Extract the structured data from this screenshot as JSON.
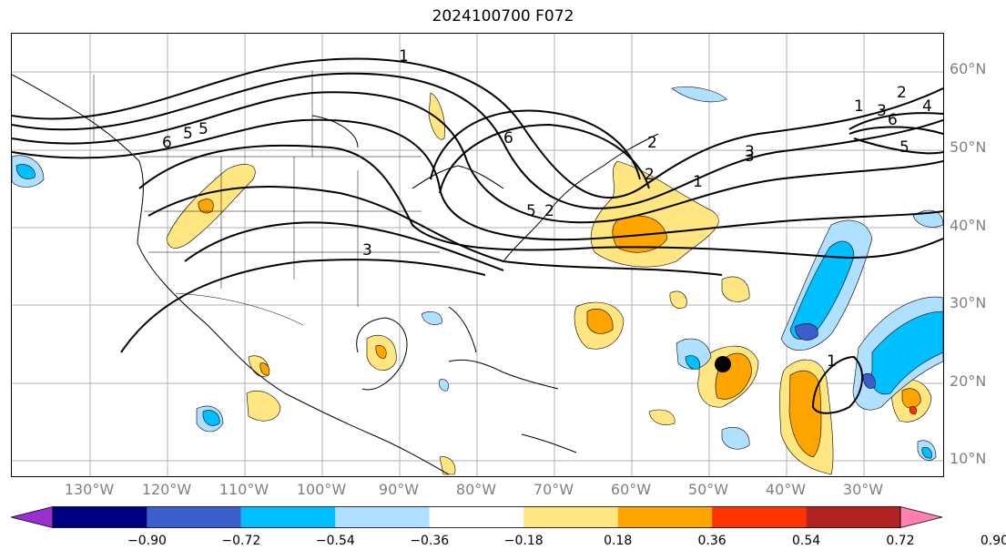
{
  "title": "2024100700 F072",
  "latitude_labels": [
    "60°N",
    "50°N",
    "40°N",
    "30°N",
    "20°N",
    "10°N"
  ],
  "longitude_labels": [
    "130°W",
    "120°W",
    "110°W",
    "100°W",
    "90°W",
    "80°W",
    "70°W",
    "60°W",
    "50°W",
    "40°W",
    "30°W"
  ],
  "colorbar": {
    "tick_labels": [
      "−0.90",
      "−0.72",
      "−0.54",
      "−0.36",
      "−0.18",
      "0.18",
      "0.36",
      "0.54",
      "0.72",
      "0.90"
    ],
    "colors": [
      "#9b30d0",
      "#000080",
      "#3a5fcd",
      "#00bfff",
      "#b0e0ff",
      "#ffffff",
      "#ffe680",
      "#ffa500",
      "#ff3300",
      "#b22222",
      "#ff80b0"
    ]
  },
  "contour_labels": [
    "1",
    "2",
    "3",
    "5",
    "6",
    "1",
    "2",
    "3",
    "5",
    "6",
    "1",
    "2",
    "3",
    "4",
    "5",
    "6",
    "1",
    "2",
    "3",
    "5"
  ]
}
